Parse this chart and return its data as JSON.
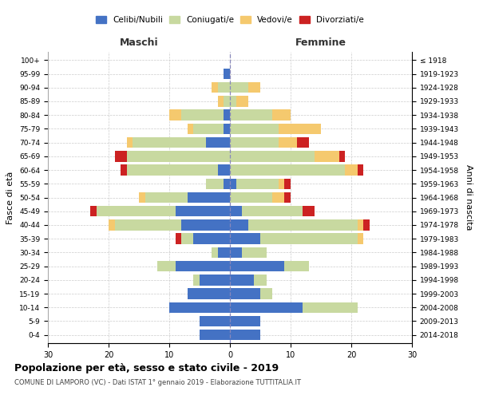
{
  "age_groups": [
    "0-4",
    "5-9",
    "10-14",
    "15-19",
    "20-24",
    "25-29",
    "30-34",
    "35-39",
    "40-44",
    "45-49",
    "50-54",
    "55-59",
    "60-64",
    "65-69",
    "70-74",
    "75-79",
    "80-84",
    "85-89",
    "90-94",
    "95-99",
    "100+"
  ],
  "birth_years": [
    "2014-2018",
    "2009-2013",
    "2004-2008",
    "1999-2003",
    "1994-1998",
    "1989-1993",
    "1984-1988",
    "1979-1983",
    "1974-1978",
    "1969-1973",
    "1964-1968",
    "1959-1963",
    "1954-1958",
    "1949-1953",
    "1944-1948",
    "1939-1943",
    "1934-1938",
    "1929-1933",
    "1924-1928",
    "1919-1923",
    "≤ 1918"
  ],
  "males": {
    "celibi": [
      5,
      5,
      10,
      7,
      5,
      9,
      2,
      6,
      8,
      9,
      7,
      1,
      2,
      0,
      4,
      1,
      1,
      0,
      0,
      1,
      0
    ],
    "coniugati": [
      0,
      0,
      0,
      0,
      1,
      3,
      1,
      2,
      11,
      13,
      7,
      3,
      15,
      17,
      12,
      5,
      7,
      1,
      2,
      0,
      0
    ],
    "vedovi": [
      0,
      0,
      0,
      0,
      0,
      0,
      0,
      0,
      1,
      0,
      1,
      0,
      0,
      0,
      1,
      1,
      2,
      1,
      1,
      0,
      0
    ],
    "divorziati": [
      0,
      0,
      0,
      0,
      0,
      0,
      0,
      1,
      0,
      1,
      0,
      0,
      1,
      2,
      0,
      0,
      0,
      0,
      0,
      0,
      0
    ]
  },
  "females": {
    "nubili": [
      5,
      5,
      12,
      5,
      4,
      9,
      2,
      5,
      3,
      2,
      0,
      1,
      0,
      0,
      0,
      0,
      0,
      0,
      0,
      0,
      0
    ],
    "coniugate": [
      0,
      0,
      9,
      2,
      2,
      4,
      4,
      16,
      18,
      10,
      7,
      7,
      19,
      14,
      8,
      8,
      7,
      1,
      3,
      0,
      0
    ],
    "vedove": [
      0,
      0,
      0,
      0,
      0,
      0,
      0,
      1,
      1,
      0,
      2,
      1,
      2,
      4,
      3,
      7,
      3,
      2,
      2,
      0,
      0
    ],
    "divorziate": [
      0,
      0,
      0,
      0,
      0,
      0,
      0,
      0,
      1,
      2,
      1,
      1,
      1,
      1,
      2,
      0,
      0,
      0,
      0,
      0,
      0
    ]
  },
  "colors": {
    "celibi": "#4472C4",
    "coniugati": "#c8d9a0",
    "vedovi": "#f5c96e",
    "divorziati": "#cc2222"
  },
  "xlim": 30,
  "title": "Popolazione per età, sesso e stato civile - 2019",
  "subtitle": "COMUNE DI LAMPORO (VC) - Dati ISTAT 1° gennaio 2019 - Elaborazione TUTTITALIA.IT",
  "ylabel_left": "Fasce di età",
  "ylabel_right": "Anni di nascita"
}
